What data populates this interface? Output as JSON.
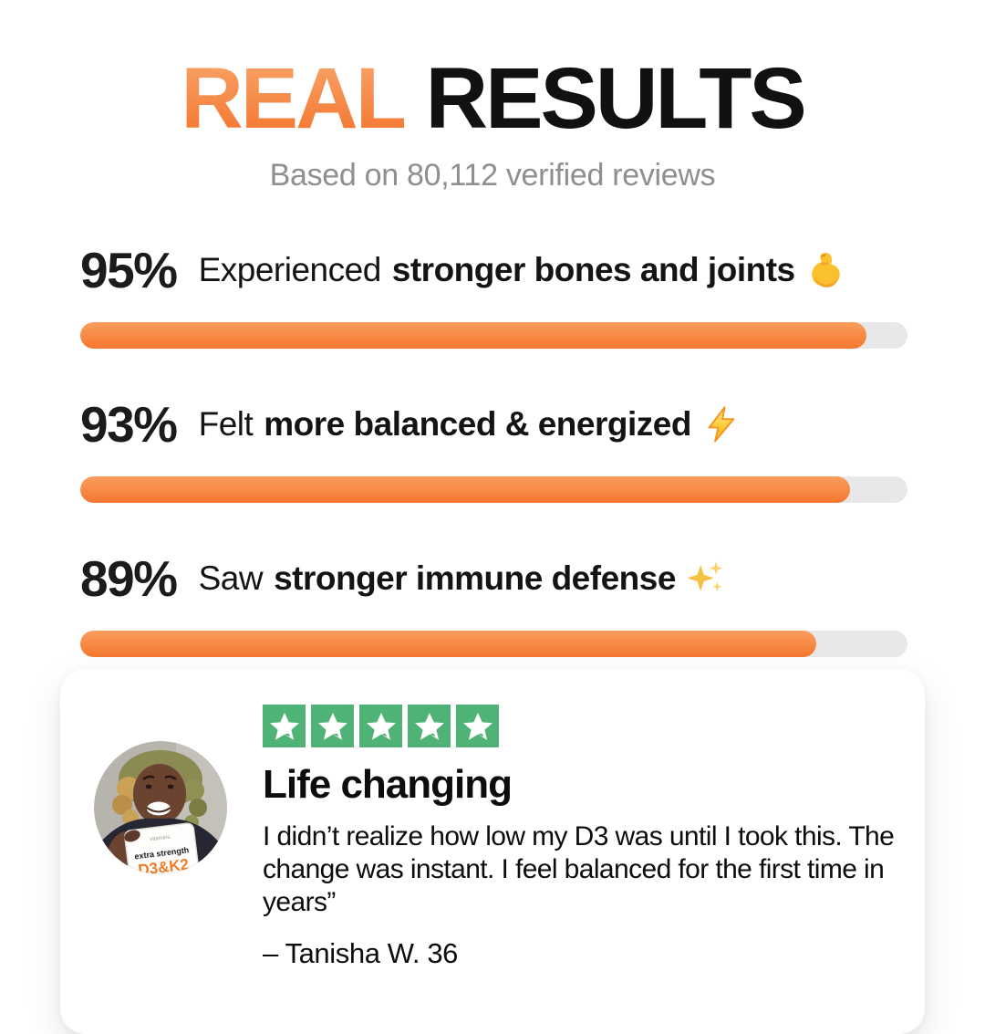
{
  "header": {
    "title_accent": "REAL",
    "title_rest": "RESULTS",
    "subtitle": "Based on 80,112 verified reviews"
  },
  "stats": [
    {
      "percent": "95%",
      "value": 95,
      "prefix": "Experienced ",
      "highlight": "stronger bones and joints",
      "icon": "flexed-biceps-emoji"
    },
    {
      "percent": "93%",
      "value": 93,
      "prefix": "Felt ",
      "highlight": "more balanced & energized",
      "icon": "high-voltage-emoji"
    },
    {
      "percent": "89%",
      "value": 89,
      "prefix": "Saw ",
      "highlight": "stronger immune defense",
      "icon": "sparkles-emoji"
    }
  ],
  "chart_data": {
    "type": "bar",
    "orientation": "horizontal",
    "title": "REAL RESULTS",
    "subtitle": "Based on 80,112 verified reviews",
    "categories": [
      "Experienced stronger bones and joints",
      "Felt more balanced & energized",
      "Saw stronger immune defense"
    ],
    "values": [
      95,
      93,
      89
    ],
    "unit": "%",
    "xlim": [
      0,
      100
    ],
    "grid": false,
    "legend": false
  },
  "review_card": {
    "rating_stars": 5,
    "star_icon": "trustpilot-star-icon",
    "title": "Life changing",
    "quote": "I didn’t realize how low my D3 was until I took this. The change was instant. I feel balanced for the first time in years”",
    "attribution": "– Tanisha W. 36",
    "avatar": {
      "alt": "reviewer-photo",
      "product_label_small": "extra strength",
      "product_label_big": "D3&K2"
    }
  },
  "colors": {
    "accent_gradient_top": "#F9A76E",
    "accent_gradient_bottom": "#F37129",
    "bar_fill_top": "#FA9E5E",
    "bar_fill_bottom": "#F5772E",
    "bar_track": "#E8E8EA",
    "star_green": "#4FB276",
    "subtitle_gray": "#8E8E93",
    "text_dark": "#111111"
  }
}
